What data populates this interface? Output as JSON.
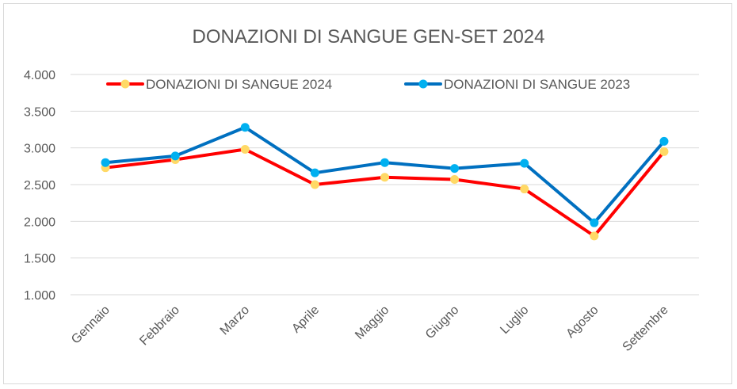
{
  "chart_data": {
    "type": "line",
    "title": "DONAZIONI DI SANGUE GEN-SET 2024",
    "categories": [
      "Gennaio",
      "Febbraio",
      "Marzo",
      "Aprile",
      "Maggio",
      "Giugno",
      "Luglio",
      "Agosto",
      "Settembre"
    ],
    "ylim": [
      1000,
      4000
    ],
    "yticks": [
      "1.000",
      "1.500",
      "2.000",
      "2.500",
      "3.000",
      "3.500",
      "4.000"
    ],
    "ytick_values": [
      1000,
      1500,
      2000,
      2500,
      3000,
      3500,
      4000
    ],
    "grid": true,
    "legend_position": "top",
    "series": [
      {
        "name": "DONAZIONI DI SANGUE 2024",
        "line_color": "#ff0000",
        "marker_color": "#ffd966",
        "values": [
          2730,
          2840,
          2980,
          2500,
          2600,
          2570,
          2440,
          1800,
          2950
        ]
      },
      {
        "name": "DONAZIONI DI SANGUE 2023",
        "line_color": "#0070c0",
        "marker_color": "#00b0f0",
        "values": [
          2800,
          2890,
          3280,
          2660,
          2800,
          2720,
          2790,
          1980,
          3090
        ]
      }
    ]
  }
}
